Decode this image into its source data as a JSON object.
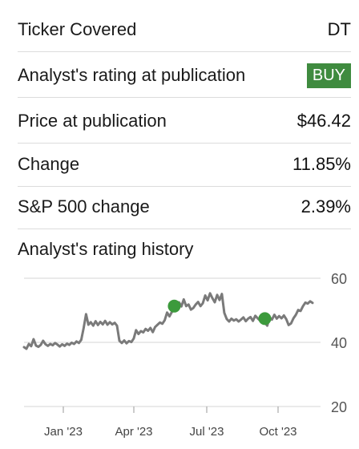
{
  "rows": [
    {
      "label": "Ticker Covered",
      "value": "DT"
    },
    {
      "label": "Analyst's rating at publication",
      "value": "BUY"
    },
    {
      "label": "Price at publication",
      "value": "$46.42"
    },
    {
      "label": "Change",
      "value": "11.85%"
    },
    {
      "label": "S&P 500 change",
      "value": "2.39%"
    }
  ],
  "history_title": "Analyst's rating history",
  "colors": {
    "positive": "#2c8a4b",
    "link": "#3a6fd8",
    "badge": "#3f8b3f",
    "line": "#7a7a7a",
    "marker": "#3c9a3c"
  },
  "chart_data": {
    "type": "line",
    "x_tick_labels": [
      "Jan '23",
      "Apr '23",
      "Jul '23",
      "Oct '23"
    ],
    "y_tick_labels": [
      "60",
      "40",
      "20"
    ],
    "ylim": [
      20,
      60
    ],
    "grid": true,
    "series": [
      {
        "values": [
          38.5,
          38,
          39.5,
          38.8,
          41,
          39,
          38.6,
          39.2,
          40.5,
          39.4,
          38.9,
          39.5,
          39.1,
          39.8,
          39.3,
          38.7,
          39.4,
          38.9,
          39.6,
          39.2,
          39.9,
          39.5,
          40.3,
          39.8,
          40.8,
          44.5,
          48.8,
          45.5,
          46.3,
          45.2,
          46.6,
          45.4,
          46.4,
          45.6,
          46.7,
          45.5,
          46.3,
          45.6,
          46.1,
          45.2,
          40.5,
          39.8,
          40.6,
          39.7,
          40.4,
          40.1,
          41.2,
          43.8,
          42.6,
          43.5,
          43.1,
          44.2,
          43.6,
          44.5,
          43.2,
          44.8,
          45.5,
          46.2,
          45.8,
          46.9,
          49.3,
          48.1,
          49.5,
          51.3,
          50.4,
          52.5,
          51.2,
          53.4,
          51.3,
          51.8,
          50.2,
          50.7,
          51.8,
          52.6,
          51.3,
          52.2,
          54.6,
          53.1,
          55.3,
          53.8,
          52.5,
          54.8,
          53.2,
          55.1,
          49.2,
          47.3,
          46.5,
          47.4,
          46.8,
          47.2,
          46.5,
          47.1,
          47.8,
          46.6,
          47.4,
          47.9,
          46.7,
          48.3,
          47.5,
          46.8,
          47.4,
          46.2,
          45.2,
          47.8,
          47.1,
          48.6,
          47.4,
          48.2,
          47.5,
          48.4,
          47.2,
          45.4,
          45.9,
          47.5,
          48.6,
          50.1,
          49.8,
          51.3,
          52.4,
          52.1,
          52.8,
          52.3
        ]
      }
    ],
    "rating_markers": [
      {
        "index": 63,
        "value": 51.3
      },
      {
        "index": 101,
        "value": 47.4
      }
    ]
  }
}
